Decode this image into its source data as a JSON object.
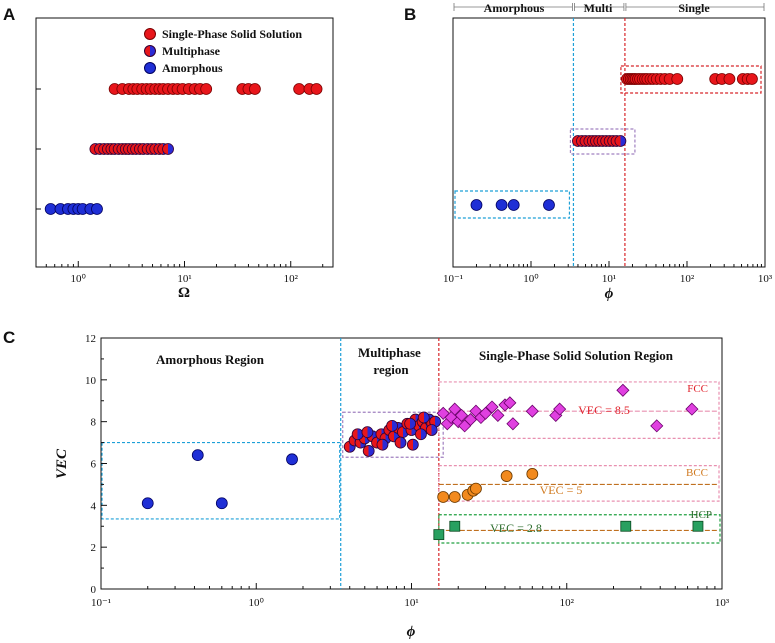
{
  "panels": {
    "a": "A",
    "b": "B",
    "c": "C"
  },
  "colors": {
    "single": "#e8161b",
    "multi_left": "#e8161b",
    "multi_right": "#2b2bd6",
    "amorphous": "#1f2fd6",
    "fcc": "#e040e0",
    "bcc": "#f28a1e",
    "hcp": "#28a060",
    "cyan_line": "#1ea0d8",
    "red_line": "#d8262a",
    "purple_box": "#a080c0",
    "pink_box": "#e890b0",
    "orange_line": "#c07020",
    "green_box": "#20a040",
    "vec_label_red": "#e0202a",
    "vec_label_orange": "#d07a20",
    "hcp_label": "#2a6a2a",
    "amorph_top": "#1b8fc8",
    "multi_top": "#1a1a6e",
    "single_top": "#d02028"
  },
  "chart_data": [
    {
      "id": "A",
      "type": "scatter",
      "xscale": "log",
      "xlim": [
        0.4,
        250
      ],
      "xlabel": "Ω",
      "ylabel": "",
      "xticks": [
        {
          "v": 1,
          "label": "10⁰"
        },
        {
          "v": 10,
          "label": "10¹"
        },
        {
          "v": 100,
          "label": "10²"
        }
      ],
      "legend": {
        "placement": "top-right",
        "entries": [
          "Single-Phase Solid Solution",
          "Multiphase",
          "Amorphous"
        ]
      },
      "series": [
        {
          "name": "Single-Phase Solid Solution",
          "level": 3,
          "x": [
            2.2,
            2.6,
            3.0,
            3.3,
            3.6,
            4.0,
            4.4,
            4.8,
            5.3,
            5.8,
            6.3,
            7.0,
            7.8,
            8.6,
            9.6,
            11,
            12.5,
            14,
            16,
            35,
            40,
            46,
            120,
            150,
            175
          ]
        },
        {
          "name": "Multiphase",
          "level": 2,
          "x": [
            1.45,
            1.6,
            1.75,
            1.9,
            2.05,
            2.2,
            2.4,
            2.6,
            2.8,
            3.0,
            3.25,
            3.5,
            3.8,
            4.1,
            4.5,
            4.9,
            5.3,
            5.8,
            6.3,
            7.0
          ]
        },
        {
          "name": "Amorphous",
          "level": 1,
          "x": [
            0.55,
            0.68,
            0.8,
            0.9,
            1.0,
            1.1,
            1.3,
            1.5
          ]
        }
      ]
    },
    {
      "id": "B",
      "type": "scatter",
      "xscale": "log",
      "xlim": [
        0.1,
        1000
      ],
      "xlabel": "ϕ",
      "ylabel": "",
      "xticks": [
        {
          "v": 0.1,
          "label": "10⁻¹"
        },
        {
          "v": 1,
          "label": "10⁰"
        },
        {
          "v": 10,
          "label": "10¹"
        },
        {
          "v": 100,
          "label": "10²"
        },
        {
          "v": 1000,
          "label": "10³"
        }
      ],
      "boundaries": [
        3.5,
        16
      ],
      "top_labels": [
        "Amorphous",
        "Multi",
        "Single"
      ],
      "series": [
        {
          "name": "Amorphous",
          "level": 1,
          "x": [
            0.2,
            0.42,
            0.6,
            1.7
          ]
        },
        {
          "name": "Multiphase",
          "level": 2,
          "x": [
            4.0,
            4.5,
            5.0,
            5.6,
            6.2,
            6.8,
            7.5,
            8.3,
            9.2,
            10.2,
            11.3,
            12.5,
            14
          ]
        },
        {
          "name": "Single-Phase Solid Solution",
          "level": 3,
          "x": [
            17,
            18,
            19,
            20,
            21,
            22,
            23.5,
            25,
            27,
            29,
            31,
            34,
            37,
            41,
            46,
            52,
            60,
            75,
            230,
            280,
            350,
            520,
            600,
            680
          ]
        }
      ]
    },
    {
      "id": "C",
      "type": "scatter",
      "xscale": "log",
      "xlim": [
        0.1,
        1000
      ],
      "ylim": [
        0,
        12
      ],
      "xlabel": "ϕ",
      "ylabel": "VEC",
      "xticks": [
        {
          "v": 0.1,
          "label": "10⁻¹"
        },
        {
          "v": 1,
          "label": "10⁰"
        },
        {
          "v": 10,
          "label": "10¹"
        },
        {
          "v": 100,
          "label": "10²"
        },
        {
          "v": 1000,
          "label": "10³"
        }
      ],
      "yticks": [
        0,
        2,
        4,
        6,
        8,
        10,
        12
      ],
      "boundaries": [
        3.5,
        15
      ],
      "regions": [
        "Amorphous Region",
        "Multiphase region",
        "Single-Phase Solid Solution Region"
      ],
      "structures": [
        "FCC",
        "BCC",
        "HCP"
      ],
      "vec_lines": [
        {
          "label": "VEC = 8.5",
          "y": 8.5
        },
        {
          "label": "VEC = 5",
          "y": 5.0
        },
        {
          "label": "VEC = 2.8",
          "y": 2.8
        }
      ],
      "series": [
        {
          "name": "Amorphous",
          "x": [
            0.2,
            0.42,
            0.6,
            1.7
          ],
          "y": [
            4.1,
            6.4,
            4.1,
            6.2
          ]
        },
        {
          "name": "Multiphase",
          "x": [
            4.0,
            4.3,
            4.7,
            5.0,
            5.3,
            5.6,
            6.0,
            6.4,
            6.8,
            7.2,
            7.7,
            8.2,
            8.8,
            9.4,
            10.0,
            10.6,
            11.2,
            11.8,
            12.4,
            13.0,
            13.6,
            14.2,
            4.5,
            5.2,
            6.5,
            7.5,
            8.5,
            9.8,
            11.5,
            13.5,
            10.2,
            12.0
          ],
          "y": [
            6.8,
            7.1,
            7.0,
            7.2,
            6.6,
            7.3,
            7.0,
            7.4,
            7.2,
            7.6,
            7.3,
            7.7,
            7.5,
            7.9,
            7.6,
            8.1,
            7.8,
            8.0,
            7.7,
            8.1,
            7.9,
            8.0,
            7.4,
            7.5,
            6.9,
            7.8,
            7.0,
            7.9,
            7.4,
            7.6,
            6.9,
            8.2
          ]
        },
        {
          "name": "FCC",
          "x": [
            16,
            17,
            18,
            19,
            20,
            21,
            22,
            24,
            26,
            28,
            30,
            33,
            36,
            40,
            43,
            45,
            60,
            85,
            90,
            230,
            380,
            640
          ],
          "y": [
            8.4,
            7.9,
            8.2,
            8.6,
            8.0,
            8.3,
            7.8,
            8.1,
            8.5,
            8.2,
            8.4,
            8.7,
            8.3,
            8.8,
            8.9,
            7.9,
            8.5,
            8.3,
            8.6,
            9.5,
            7.8,
            8.6
          ]
        },
        {
          "name": "BCC",
          "x": [
            16,
            19,
            23,
            25,
            26,
            41,
            60
          ],
          "y": [
            4.4,
            4.4,
            4.5,
            4.7,
            4.8,
            5.4,
            5.5
          ]
        },
        {
          "name": "HCP",
          "x": [
            15,
            19,
            240,
            700
          ],
          "y": [
            2.6,
            3.0,
            3.0,
            3.0
          ]
        }
      ]
    }
  ]
}
